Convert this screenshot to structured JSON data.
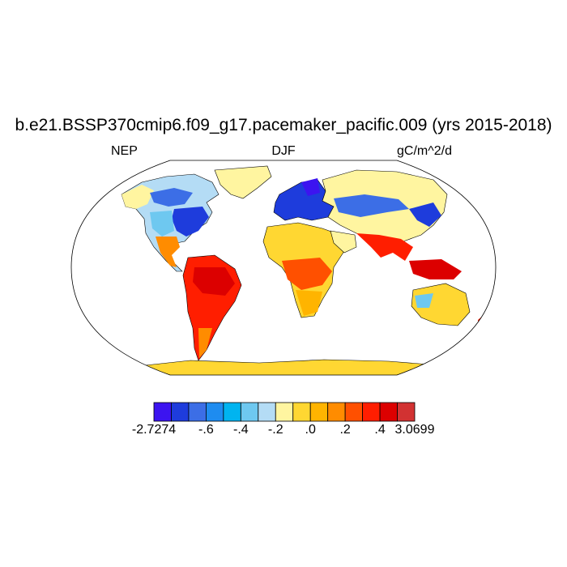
{
  "title": "b.e21.BSSP370cmip6.f09_g17.pacemaker_pacific.009 (yrs 2015-2018)",
  "left_label": "NEP",
  "center_label": "DJF",
  "right_label": "gC/m^2/d",
  "colorbar": {
    "colors": [
      "#3c14f0",
      "#1e3cdc",
      "#3c6ee6",
      "#1e8cf0",
      "#00b4f0",
      "#6ec8f0",
      "#b4dcf5",
      "#fff5a0",
      "#ffd732",
      "#ffb400",
      "#ff8c00",
      "#ff5000",
      "#ff1e00",
      "#dc0000",
      "#d23232"
    ],
    "tick_labels": [
      "-2.7274",
      "-.6",
      "-.4",
      "-.2",
      ".0",
      ".2",
      ".4",
      "3.0699"
    ]
  },
  "chart_data": {
    "type": "heatmap",
    "variable": "NEP",
    "season": "DJF",
    "units": "gC/m^2/d",
    "range": [
      -2.7274,
      3.0699
    ],
    "levels": [
      -0.6,
      -0.5,
      -0.4,
      -0.3,
      -0.2,
      -0.1,
      0.0,
      0.1,
      0.2,
      0.3,
      0.4,
      0.5,
      0.6
    ],
    "regions": [
      {
        "name": "North America (boreal/temperate)",
        "sign": "negative"
      },
      {
        "name": "Eastern United States",
        "sign": "strongly negative"
      },
      {
        "name": "Europe",
        "sign": "strongly negative"
      },
      {
        "name": "Siberia / Northern Asia",
        "sign": "near zero"
      },
      {
        "name": "Central Asia",
        "sign": "negative"
      },
      {
        "name": "Sahara / Arabia",
        "sign": "slightly positive"
      },
      {
        "name": "Central Africa",
        "sign": "positive"
      },
      {
        "name": "Southern Africa",
        "sign": "mixed"
      },
      {
        "name": "Amazon / South America",
        "sign": "strongly positive"
      },
      {
        "name": "India / Southeast Asia",
        "sign": "strongly positive"
      },
      {
        "name": "Maritime Continent",
        "sign": "strongly positive"
      },
      {
        "name": "Australia",
        "sign": "mixed"
      },
      {
        "name": "Greenland",
        "sign": "slightly positive"
      },
      {
        "name": "Antarctica",
        "sign": "slightly positive"
      }
    ]
  }
}
